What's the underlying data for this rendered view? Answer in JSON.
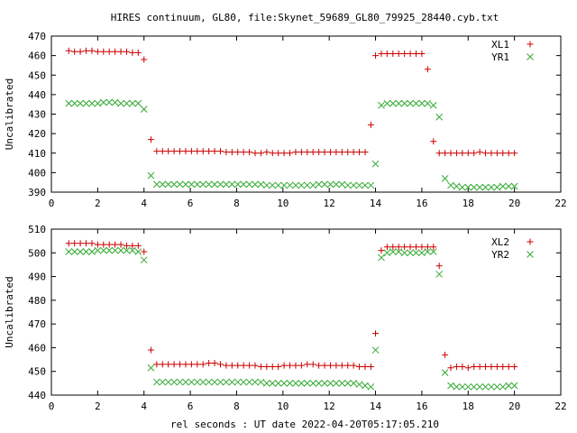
{
  "chart_data": [
    {
      "type": "scatter",
      "title": "HIRES continuum, GL80, file:Skynet_59689_GL80_79925_28440.cyb.txt",
      "xlabel": "",
      "ylabel": "Uncalibrated",
      "xlim": [
        0,
        22
      ],
      "ylim": [
        390,
        470
      ],
      "xticks": [
        "0",
        "2",
        "4",
        "6",
        "8",
        "10",
        "12",
        "14",
        "16",
        "18",
        "20",
        "22"
      ],
      "yticks": [
        "390",
        "400",
        "410",
        "420",
        "430",
        "440",
        "450",
        "460",
        "470"
      ],
      "legend_position": "top-right",
      "series": [
        {
          "name": "XL1",
          "color": "#cc0000",
          "marker": "plus",
          "x": [
            0.75,
            1.0,
            1.25,
            1.5,
            1.75,
            2.0,
            2.25,
            2.5,
            2.75,
            3.0,
            3.25,
            3.5,
            3.75,
            4.0,
            4.3,
            4.55,
            4.8,
            5.05,
            5.3,
            5.55,
            5.8,
            6.05,
            6.3,
            6.55,
            6.8,
            7.05,
            7.3,
            7.55,
            7.8,
            8.05,
            8.3,
            8.55,
            8.8,
            9.05,
            9.3,
            9.55,
            9.8,
            10.05,
            10.3,
            10.55,
            10.8,
            11.05,
            11.3,
            11.55,
            11.8,
            12.05,
            12.3,
            12.55,
            12.8,
            13.05,
            13.3,
            13.55,
            13.8,
            14.0,
            14.25,
            14.5,
            14.75,
            15.0,
            15.25,
            15.5,
            15.75,
            16.0,
            16.25,
            16.5,
            16.75,
            17.0,
            17.25,
            17.5,
            17.75,
            18.0,
            18.25,
            18.5,
            18.75,
            19.0,
            19.25,
            19.5,
            19.75,
            20.0
          ],
          "y": [
            462.5,
            462,
            462,
            462.5,
            462.5,
            462,
            462,
            462,
            462,
            462,
            462,
            461.5,
            461.5,
            458,
            417,
            411,
            411,
            411,
            411,
            411,
            411,
            411,
            411,
            411,
            411,
            411,
            411,
            410.5,
            410.5,
            410.5,
            410.5,
            410.5,
            410,
            410,
            410.5,
            410,
            410,
            410,
            410,
            410.5,
            410.5,
            410.5,
            410.5,
            410.5,
            410.5,
            410.5,
            410.5,
            410.5,
            410.5,
            410.5,
            410.5,
            410.5,
            424.5,
            460,
            461,
            461,
            461,
            461,
            461,
            461,
            461,
            461,
            453,
            416,
            410,
            410,
            410,
            410,
            410,
            410,
            410,
            410.5,
            410,
            410,
            410,
            410,
            410,
            410
          ]
        },
        {
          "name": "YR1",
          "color": "#33aa33",
          "marker": "x",
          "x": [
            0.75,
            1.0,
            1.25,
            1.5,
            1.75,
            2.0,
            2.25,
            2.5,
            2.75,
            3.0,
            3.25,
            3.5,
            3.75,
            4.0,
            4.3,
            4.55,
            4.8,
            5.05,
            5.3,
            5.55,
            5.8,
            6.05,
            6.3,
            6.55,
            6.8,
            7.05,
            7.3,
            7.55,
            7.8,
            8.05,
            8.3,
            8.55,
            8.8,
            9.05,
            9.3,
            9.55,
            9.8,
            10.05,
            10.3,
            10.55,
            10.8,
            11.05,
            11.3,
            11.55,
            11.8,
            12.05,
            12.3,
            12.55,
            12.8,
            13.05,
            13.3,
            13.55,
            13.8,
            14.0,
            14.25,
            14.5,
            14.75,
            15.0,
            15.25,
            15.5,
            15.75,
            16.0,
            16.25,
            16.5,
            16.75,
            17.0,
            17.25,
            17.5,
            17.75,
            18.0,
            18.25,
            18.5,
            18.75,
            19.0,
            19.25,
            19.5,
            19.75,
            20.0
          ],
          "y": [
            435.5,
            435.5,
            435.5,
            435.5,
            435.5,
            435.5,
            436,
            436,
            436,
            435.5,
            435.5,
            435.5,
            435.5,
            432.5,
            398.5,
            394,
            394,
            394,
            394,
            394,
            394,
            394,
            394,
            394,
            394,
            394,
            394,
            394,
            394,
            394,
            394,
            394,
            394,
            394,
            393.5,
            393.5,
            393.5,
            393.5,
            393.5,
            393.5,
            393.5,
            393.5,
            393.5,
            394,
            394,
            394,
            394,
            394,
            393.5,
            393.5,
            393.5,
            393.5,
            393.5,
            404.5,
            434.5,
            435.5,
            435.5,
            435.5,
            435.5,
            435.5,
            435.5,
            435.5,
            435.5,
            434.5,
            428.5,
            397,
            393.5,
            393,
            392.5,
            392.5,
            392.5,
            392.5,
            392.5,
            392.5,
            392.5,
            393,
            393,
            393
          ]
        }
      ]
    },
    {
      "type": "scatter",
      "title": "",
      "xlabel": "rel seconds : UT date 2022-04-20T05:17:05.210",
      "ylabel": "Uncalibrated",
      "xlim": [
        0,
        22
      ],
      "ylim": [
        440,
        510
      ],
      "xticks": [
        "0",
        "2",
        "4",
        "6",
        "8",
        "10",
        "12",
        "14",
        "16",
        "18",
        "20",
        "22"
      ],
      "yticks": [
        "440",
        "450",
        "460",
        "470",
        "480",
        "490",
        "500",
        "510"
      ],
      "legend_position": "top-right",
      "series": [
        {
          "name": "XL2",
          "color": "#cc0000",
          "marker": "plus",
          "x": [
            0.75,
            1.0,
            1.25,
            1.5,
            1.75,
            2.0,
            2.25,
            2.5,
            2.75,
            3.0,
            3.25,
            3.5,
            3.75,
            4.0,
            4.3,
            4.55,
            4.8,
            5.05,
            5.3,
            5.55,
            5.8,
            6.05,
            6.3,
            6.55,
            6.8,
            7.05,
            7.3,
            7.55,
            7.8,
            8.05,
            8.3,
            8.55,
            8.8,
            9.05,
            9.3,
            9.55,
            9.8,
            10.05,
            10.3,
            10.55,
            10.8,
            11.05,
            11.3,
            11.55,
            11.8,
            12.05,
            12.3,
            12.55,
            12.8,
            13.05,
            13.3,
            13.55,
            13.8,
            14.0,
            14.25,
            14.5,
            14.75,
            15.0,
            15.25,
            15.5,
            15.75,
            16.0,
            16.25,
            16.5,
            16.75,
            17.0,
            17.25,
            17.5,
            17.75,
            18.0,
            18.25,
            18.5,
            18.75,
            19.0,
            19.25,
            19.5,
            19.75,
            20.0
          ],
          "y": [
            504,
            504,
            504,
            504,
            504,
            503.5,
            503.5,
            503.5,
            503.5,
            503.5,
            503,
            503,
            503,
            500.5,
            459,
            453,
            453,
            453,
            453,
            453,
            453,
            453,
            453,
            453,
            453.5,
            453.5,
            453,
            452.5,
            452.5,
            452.5,
            452.5,
            452.5,
            452.5,
            452,
            452,
            452,
            452,
            452.5,
            452.5,
            452.5,
            452.5,
            453,
            453,
            452.5,
            452.5,
            452.5,
            452.5,
            452.5,
            452.5,
            452.5,
            452,
            452,
            452,
            466,
            501,
            502.5,
            502.5,
            502.5,
            502.5,
            502.5,
            502.5,
            502.5,
            502.5,
            502.5,
            494.5,
            457,
            451.5,
            452,
            452,
            451.5,
            452,
            452,
            452,
            452,
            452,
            452,
            452,
            452
          ]
        },
        {
          "name": "YR2",
          "color": "#33aa33",
          "marker": "x",
          "x": [
            0.75,
            1.0,
            1.25,
            1.5,
            1.75,
            2.0,
            2.25,
            2.5,
            2.75,
            3.0,
            3.25,
            3.5,
            3.75,
            4.0,
            4.3,
            4.55,
            4.8,
            5.05,
            5.3,
            5.55,
            5.8,
            6.05,
            6.3,
            6.55,
            6.8,
            7.05,
            7.3,
            7.55,
            7.8,
            8.05,
            8.3,
            8.55,
            8.8,
            9.05,
            9.3,
            9.55,
            9.8,
            10.05,
            10.3,
            10.55,
            10.8,
            11.05,
            11.3,
            11.55,
            11.8,
            12.05,
            12.3,
            12.55,
            12.8,
            13.05,
            13.3,
            13.55,
            13.8,
            14.0,
            14.25,
            14.5,
            14.75,
            15.0,
            15.25,
            15.5,
            15.75,
            16.0,
            16.25,
            16.5,
            16.75,
            17.0,
            17.25,
            17.5,
            17.75,
            18.0,
            18.25,
            18.5,
            18.75,
            19.0,
            19.25,
            19.5,
            19.75,
            20.0
          ],
          "y": [
            500.5,
            500.5,
            500.5,
            500.5,
            500.5,
            501,
            501,
            501,
            501,
            501,
            501,
            501,
            500.5,
            497,
            451.5,
            445.5,
            445.5,
            445.5,
            445.5,
            445.5,
            445.5,
            445.5,
            445.5,
            445.5,
            445.5,
            445.5,
            445.5,
            445.5,
            445.5,
            445.5,
            445.5,
            445.5,
            445.5,
            445.5,
            445,
            445,
            445,
            445,
            445,
            445,
            445,
            445,
            445,
            445,
            445,
            445,
            445,
            445,
            445,
            445,
            444.5,
            444,
            443.5,
            459,
            498,
            500,
            500.5,
            500.5,
            500,
            500,
            500,
            500,
            500.5,
            500.5,
            491,
            449.5,
            444,
            443.5,
            443.5,
            443.5,
            443.5,
            443.5,
            443.5,
            443.5,
            443.5,
            443.5,
            444,
            444
          ]
        }
      ]
    }
  ]
}
